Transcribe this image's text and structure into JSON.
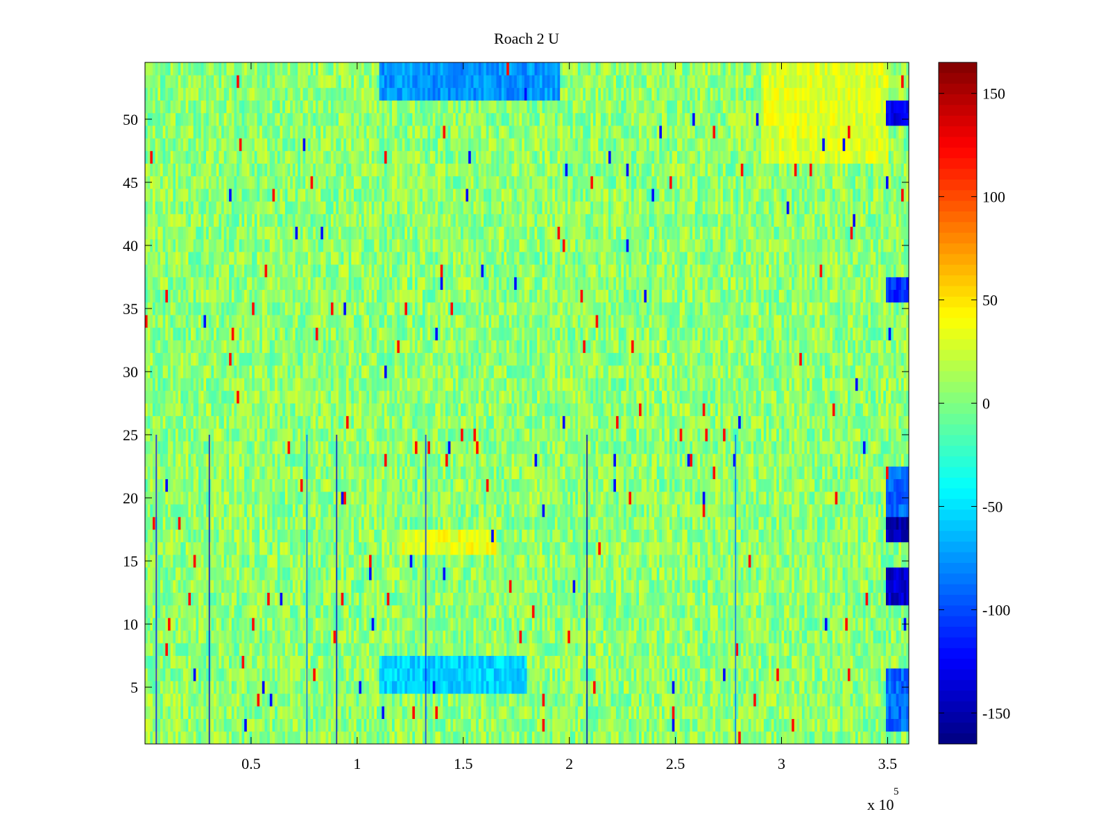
{
  "chart_data": {
    "type": "heatmap",
    "title": "Roach 2 U",
    "xlabel": "",
    "ylabel": "",
    "x_exponent_label": "x 10",
    "x_exponent": "5",
    "xlim": [
      0,
      360000
    ],
    "ylim": [
      0.5,
      54.5
    ],
    "x_ticks": [
      {
        "value": 50000,
        "label": "0.5"
      },
      {
        "value": 100000,
        "label": "1"
      },
      {
        "value": 150000,
        "label": "1.5"
      },
      {
        "value": 200000,
        "label": "2"
      },
      {
        "value": 250000,
        "label": "2.5"
      },
      {
        "value": 300000,
        "label": "3"
      },
      {
        "value": 350000,
        "label": "3.5"
      }
    ],
    "y_ticks": [
      {
        "value": 5,
        "label": "5"
      },
      {
        "value": 10,
        "label": "10"
      },
      {
        "value": 15,
        "label": "15"
      },
      {
        "value": 20,
        "label": "20"
      },
      {
        "value": 25,
        "label": "25"
      },
      {
        "value": 30,
        "label": "30"
      },
      {
        "value": 35,
        "label": "35"
      },
      {
        "value": 40,
        "label": "40"
      },
      {
        "value": 45,
        "label": "45"
      },
      {
        "value": 50,
        "label": "50"
      }
    ],
    "rows": 54,
    "colorbar": {
      "colormap": "jet",
      "range": [
        -165,
        165
      ],
      "ticks": [
        {
          "value": 150,
          "label": "150"
        },
        {
          "value": 100,
          "label": "100"
        },
        {
          "value": 50,
          "label": "50"
        },
        {
          "value": 0,
          "label": "0"
        },
        {
          "value": -50,
          "label": "-50"
        },
        {
          "value": -100,
          "label": "-100"
        },
        {
          "value": -150,
          "label": "-150"
        }
      ]
    },
    "baseline_value": 5,
    "regions": [
      {
        "x": [
          110000,
          195000
        ],
        "rows": [
          52,
          54
        ],
        "value": -75
      },
      {
        "x": [
          110000,
          180000
        ],
        "rows": [
          5,
          7
        ],
        "value": -55
      },
      {
        "x": [
          120000,
          165000
        ],
        "rows": [
          16,
          17
        ],
        "value": 35
      },
      {
        "x": [
          290000,
          350000
        ],
        "rows": [
          47,
          54
        ],
        "value": 30
      },
      {
        "x": [
          349000,
          360000
        ],
        "rows": [
          50,
          51
        ],
        "value": -130
      },
      {
        "x": [
          349000,
          360000
        ],
        "rows": [
          17,
          18
        ],
        "value": -150
      },
      {
        "x": [
          349000,
          360000
        ],
        "rows": [
          12,
          14
        ],
        "value": -140
      },
      {
        "x": [
          349000,
          360000
        ],
        "rows": [
          36,
          37
        ],
        "value": -110
      },
      {
        "x": [
          349000,
          360000
        ],
        "rows": [
          19,
          22
        ],
        "value": -90
      },
      {
        "x": [
          349000,
          360000
        ],
        "rows": [
          2,
          6
        ],
        "value": -90
      }
    ],
    "spike_columns": [
      {
        "x": 5000,
        "value": -120
      },
      {
        "x": 30000,
        "value": -140
      },
      {
        "x": 76000,
        "value": -90
      },
      {
        "x": 90000,
        "value": -140
      },
      {
        "x": 132000,
        "value": -110
      },
      {
        "x": 208000,
        "value": -150
      },
      {
        "x": 278000,
        "value": -90
      }
    ]
  }
}
